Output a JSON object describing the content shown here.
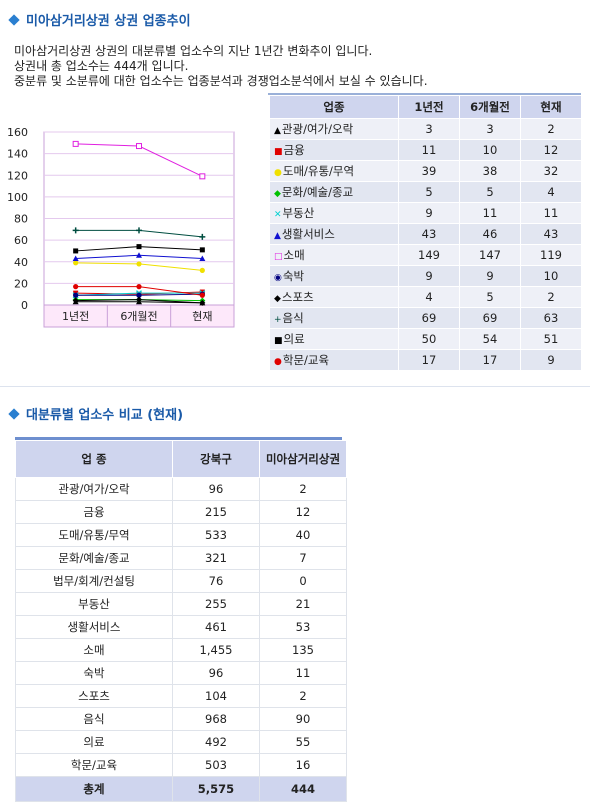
{
  "section1": {
    "title": "미아삼거리상권 상권 업종추이"
  },
  "description": [
    "미아삼거리상권 상권의 대분류별 업소수의 지난 1년간 변화추이 입니다.",
    "상권내 총 업소수는 444개 입니다.",
    "중분류 및 소분류에 대한 업소수는 업종분석과 경쟁업소분석에서 보실 수 있습니다."
  ],
  "trend_table": {
    "headers": [
      "업종",
      "1년전",
      "6개월전",
      "현재"
    ],
    "rows": [
      {
        "marker": "▲",
        "marker_color": "#000000",
        "label": "관광/여가/오락",
        "v": [
          "3",
          "3",
          "2"
        ]
      },
      {
        "marker": "■",
        "marker_color": "#e00000",
        "label": "금융",
        "v": [
          "11",
          "10",
          "12"
        ]
      },
      {
        "marker": "●",
        "marker_color": "#f0e000",
        "label": "도매/유통/무역",
        "v": [
          "39",
          "38",
          "32"
        ]
      },
      {
        "marker": "◆",
        "marker_color": "#00c000",
        "label": "문화/예술/종교",
        "v": [
          "5",
          "5",
          "4"
        ]
      },
      {
        "marker": "✕",
        "marker_color": "#00d0d0",
        "label": "부동산",
        "v": [
          "9",
          "11",
          "11"
        ]
      },
      {
        "marker": "▲",
        "marker_color": "#1010d0",
        "label": "생활서비스",
        "v": [
          "43",
          "46",
          "43"
        ]
      },
      {
        "marker": "□",
        "marker_color": "#e020e0",
        "label": "소매",
        "v": [
          "149",
          "147",
          "119"
        ]
      },
      {
        "marker": "◉",
        "marker_color": "#000080",
        "label": "숙박",
        "v": [
          "9",
          "9",
          "10"
        ]
      },
      {
        "marker": "◆",
        "marker_color": "#000000",
        "label": "스포츠",
        "v": [
          "4",
          "5",
          "2"
        ]
      },
      {
        "marker": "+",
        "marker_color": "#004d40",
        "label": "음식",
        "v": [
          "69",
          "69",
          "63"
        ]
      },
      {
        "marker": "■",
        "marker_color": "#000000",
        "label": "의료",
        "v": [
          "50",
          "54",
          "51"
        ]
      },
      {
        "marker": "●",
        "marker_color": "#e00000",
        "label": "학문/교육",
        "v": [
          "17",
          "17",
          "9"
        ]
      }
    ]
  },
  "chart_data": {
    "type": "line",
    "x": [
      "1년전",
      "6개월전",
      "현재"
    ],
    "ylim": [
      0,
      160
    ],
    "yticks": [
      "0",
      "20",
      "40",
      "60",
      "80",
      "100",
      "120",
      "140",
      "160"
    ],
    "series": [
      {
        "name": "관광/여가/오락",
        "color": "#000000",
        "marker": "triangle",
        "values": [
          3,
          3,
          2
        ]
      },
      {
        "name": "금융",
        "color": "#e00000",
        "marker": "square",
        "values": [
          11,
          10,
          12
        ]
      },
      {
        "name": "도매/유통/무역",
        "color": "#f0e000",
        "marker": "circle",
        "values": [
          39,
          38,
          32
        ]
      },
      {
        "name": "문화/예술/종교",
        "color": "#00c000",
        "marker": "diamond",
        "values": [
          5,
          5,
          4
        ]
      },
      {
        "name": "부동산",
        "color": "#00d0d0",
        "marker": "x",
        "values": [
          9,
          11,
          11
        ]
      },
      {
        "name": "생활서비스",
        "color": "#1010d0",
        "marker": "triangle",
        "values": [
          43,
          46,
          43
        ]
      },
      {
        "name": "소매",
        "color": "#e020e0",
        "marker": "hollow-square",
        "values": [
          149,
          147,
          119
        ]
      },
      {
        "name": "숙박",
        "color": "#000080",
        "marker": "circle",
        "values": [
          9,
          9,
          10
        ]
      },
      {
        "name": "스포츠",
        "color": "#000000",
        "marker": "diamond",
        "values": [
          4,
          5,
          2
        ]
      },
      {
        "name": "음식",
        "color": "#004d40",
        "marker": "plus",
        "values": [
          69,
          69,
          63
        ]
      },
      {
        "name": "의료",
        "color": "#000000",
        "marker": "square",
        "values": [
          50,
          54,
          51
        ]
      },
      {
        "name": "학문/교육",
        "color": "#e00000",
        "marker": "circle",
        "values": [
          17,
          17,
          9
        ]
      }
    ],
    "grid": true
  },
  "section2": {
    "title": "대분류별 업소수 비교 (현재)"
  },
  "compare_table": {
    "headers": [
      "업 종",
      "강북구",
      "미아삼거리상권"
    ],
    "rows": [
      [
        "관광/여가/오락",
        "96",
        "2"
      ],
      [
        "금융",
        "215",
        "12"
      ],
      [
        "도매/유통/무역",
        "533",
        "40"
      ],
      [
        "문화/예술/종교",
        "321",
        "7"
      ],
      [
        "법무/회계/컨설팅",
        "76",
        "0"
      ],
      [
        "부동산",
        "255",
        "21"
      ],
      [
        "생활서비스",
        "461",
        "53"
      ],
      [
        "소매",
        "1,455",
        "135"
      ],
      [
        "숙박",
        "96",
        "11"
      ],
      [
        "스포츠",
        "104",
        "2"
      ],
      [
        "음식",
        "968",
        "90"
      ],
      [
        "의료",
        "492",
        "55"
      ],
      [
        "학문/교육",
        "503",
        "16"
      ]
    ],
    "total": [
      "총계",
      "5,575",
      "444"
    ]
  }
}
